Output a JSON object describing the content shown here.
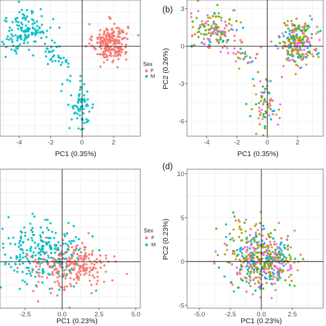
{
  "chart_data": [
    {
      "panel": "",
      "type": "scatter",
      "xlabel": "PC1 (0.35%)",
      "ylabel": "",
      "xlim": [
        -5.3,
        3.7
      ],
      "ylim": [
        -7.2,
        3.7
      ],
      "xticks": [
        -4,
        -2,
        0,
        2
      ],
      "yticks": [],
      "tick_labels_x": [
        "-4",
        "-2",
        "0",
        "2"
      ],
      "grid": true,
      "legend": {
        "title": "Sex",
        "items": [
          "F",
          "M"
        ],
        "placement": "right"
      },
      "series": [
        {
          "name": "F",
          "color": "#F8766D",
          "n": 230,
          "clusters": [
            {
              "x": [
                1.8,
                0.55
              ],
              "y": [
                0.3,
                0.75
              ],
              "n": 230
            }
          ]
        },
        {
          "name": "M",
          "color": "#00BFC4",
          "n": 250,
          "clusters": [
            {
              "x": [
                -3.6,
                0.85
              ],
              "y": [
                1.2,
                0.9
              ],
              "n": 150
            },
            {
              "x": [
                -1.5,
                0.5
              ],
              "y": [
                -0.7,
                0.6
              ],
              "n": 30
            },
            {
              "x": [
                -0.1,
                0.45
              ],
              "y": [
                -4.7,
                1.05
              ],
              "n": 70
            }
          ]
        }
      ]
    },
    {
      "panel": "(b)",
      "type": "scatter",
      "xlabel": "PC1 (0.35%)",
      "ylabel": "PC2 (0.26%)",
      "xlim": [
        -5.3,
        3.7
      ],
      "ylim": [
        -7.2,
        3.7
      ],
      "xticks": [
        -4,
        -2,
        0,
        2
      ],
      "yticks": [
        3,
        0,
        -3,
        -6
      ],
      "tick_labels_x": [
        "-4",
        "-2",
        "0",
        "2"
      ],
      "tick_labels_y": [
        "3",
        "0",
        "-3",
        "-6"
      ],
      "grid": true,
      "legend": null,
      "colors": [
        "#F8766D",
        "#A3A500",
        "#00BF7D",
        "#00B0F6",
        "#E76BF3",
        "#C49A00",
        "#53B400",
        "#FB61D7"
      ],
      "series": [
        {
          "name": "",
          "n": 480,
          "clusters": [
            {
              "x": [
                2.0,
                0.6
              ],
              "y": [
                0.4,
                0.8
              ],
              "n": 230
            },
            {
              "x": [
                -3.6,
                0.85
              ],
              "y": [
                1.2,
                0.9
              ],
              "n": 150
            },
            {
              "x": [
                -1.5,
                0.5
              ],
              "y": [
                -0.7,
                0.6
              ],
              "n": 30
            },
            {
              "x": [
                -0.1,
                0.45
              ],
              "y": [
                -4.7,
                1.05
              ],
              "n": 70
            }
          ]
        }
      ]
    },
    {
      "panel": "",
      "type": "scatter",
      "xlabel": "PC1 (0.23%)",
      "ylabel": "",
      "xlim": [
        -4.3,
        5.3
      ],
      "ylim": [
        -4.5,
        9.0
      ],
      "xticks": [
        -2.5,
        0.0,
        2.5,
        5.0
      ],
      "yticks": [],
      "tick_labels_x": [
        "-2.5",
        "0.0",
        "2.5",
        "5.0"
      ],
      "grid": true,
      "legend": {
        "title": "Sex",
        "items": [
          "F",
          "M"
        ],
        "placement": "right"
      },
      "series": [
        {
          "name": "F",
          "color": "#F8766D",
          "n": 260,
          "clusters": [
            {
              "x": [
                0.6,
                1.3
              ],
              "y": [
                -0.3,
                1.2
              ],
              "n": 260
            }
          ]
        },
        {
          "name": "M",
          "color": "#00BFC4",
          "n": 220,
          "clusters": [
            {
              "x": [
                -1.6,
                1.5
              ],
              "y": [
                0.9,
                1.6
              ],
              "n": 220
            }
          ]
        }
      ]
    },
    {
      "panel": "(d)",
      "type": "scatter",
      "xlabel": "PC1 (0.23%)",
      "ylabel": "PC2 (0.23%)",
      "xlim": [
        -6.0,
        5.0
      ],
      "ylim": [
        -5.3,
        10.5
      ],
      "xticks": [
        -5.0,
        -2.5,
        0.0,
        2.5
      ],
      "yticks": [
        10,
        5,
        0,
        -5
      ],
      "tick_labels_x": [
        "-5.0",
        "-2.5",
        "0.0",
        "2.5"
      ],
      "tick_labels_y": [
        "10",
        "5",
        "0",
        "-5"
      ],
      "grid": true,
      "legend": null,
      "colors": [
        "#F8766D",
        "#A3A500",
        "#00BF7D",
        "#00B0F6",
        "#E76BF3",
        "#C49A00",
        "#53B400",
        "#FB61D7"
      ],
      "series": [
        {
          "name": "",
          "n": 480,
          "clusters": [
            {
              "x": [
                0.2,
                1.35
              ],
              "y": [
                0.0,
                1.5
              ],
              "n": 400
            },
            {
              "x": [
                -1.2,
                1.4
              ],
              "y": [
                2.2,
                1.6
              ],
              "n": 80
            }
          ]
        }
      ]
    }
  ]
}
